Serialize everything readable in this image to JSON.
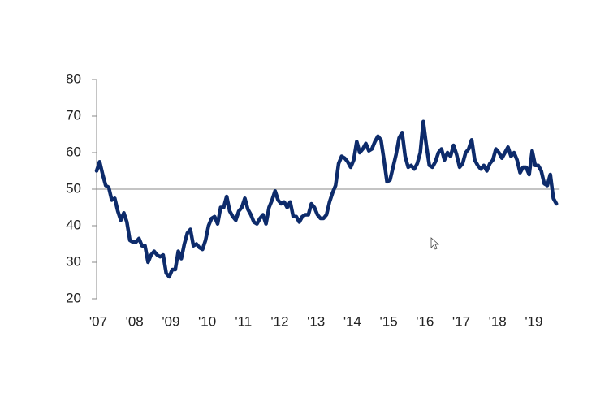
{
  "chart_data": {
    "type": "line",
    "color": "#0d2b6b",
    "categories": [
      "'07",
      null,
      null,
      null,
      null,
      null,
      null,
      null,
      null,
      null,
      null,
      null,
      "'08",
      null,
      null,
      null,
      null,
      null,
      null,
      null,
      null,
      null,
      null,
      null,
      "'09",
      null,
      null,
      null,
      null,
      null,
      null,
      null,
      null,
      null,
      null,
      null,
      "'10",
      null,
      null,
      null,
      null,
      null,
      null,
      null,
      null,
      null,
      null,
      null,
      "'11",
      null,
      null,
      null,
      null,
      null,
      null,
      null,
      null,
      null,
      null,
      null,
      "'12",
      null,
      null,
      null,
      null,
      null,
      null,
      null,
      null,
      null,
      null,
      null,
      "'13",
      null,
      null,
      null,
      null,
      null,
      null,
      null,
      null,
      null,
      null,
      null,
      "'14",
      null,
      null,
      null,
      null,
      null,
      null,
      null,
      null,
      null,
      null,
      null,
      "'15",
      null,
      null,
      null,
      null,
      null,
      null,
      null,
      null,
      null,
      null,
      null,
      "'16",
      null,
      null,
      null,
      null,
      null,
      null,
      null,
      null,
      null,
      null,
      null,
      "'17",
      null,
      null,
      null,
      null,
      null,
      null,
      null,
      null,
      null,
      null,
      null,
      "'18",
      null,
      null,
      null,
      null,
      null,
      null,
      null,
      null,
      null,
      null,
      null,
      "'19",
      null,
      null,
      null,
      null,
      null,
      null,
      null,
      null
    ],
    "values": [
      55,
      57.5,
      54,
      51,
      50.5,
      47,
      47.5,
      44,
      41.5,
      43.5,
      41,
      36,
      35.5,
      35.5,
      36.5,
      34.5,
      34.5,
      30,
      32,
      33,
      32,
      31.5,
      32,
      27,
      26,
      28,
      28,
      33,
      31,
      35,
      38,
      39,
      34.5,
      35,
      34,
      33.5,
      36,
      40,
      42,
      42.5,
      40.5,
      45,
      45,
      48,
      44,
      42.5,
      41.5,
      44,
      45,
      47.5,
      44.5,
      43,
      41,
      40.5,
      42,
      43,
      40.5,
      45,
      47,
      49.5,
      47,
      46,
      46.5,
      45,
      46.5,
      42.5,
      42.5,
      41,
      42.5,
      43,
      43,
      46,
      45,
      43,
      42,
      42,
      43,
      46.5,
      49,
      51,
      57,
      59,
      58.5,
      57.5,
      56,
      58,
      63,
      60,
      61,
      62.5,
      60.5,
      61,
      63,
      64.5,
      63.5,
      58,
      52,
      52.5,
      56,
      59.5,
      64,
      65.5,
      59,
      56,
      56.5,
      55.5,
      57,
      60,
      68.5,
      62,
      56.5,
      56,
      57.5,
      60,
      61,
      58,
      60,
      59,
      62,
      59.5,
      56,
      57,
      60,
      61,
      63.5,
      58,
      56.5,
      55.5,
      56.5,
      55,
      57,
      58,
      61,
      60,
      58.5,
      60,
      61.5,
      59,
      60,
      58,
      54.5,
      56,
      56,
      54,
      60.5,
      56.5,
      56.5,
      55,
      51.5,
      51,
      54,
      47.5,
      46
    ],
    "ylim": [
      20,
      80
    ],
    "yticks": [
      20,
      30,
      40,
      50,
      60,
      70,
      80
    ],
    "reference_line": 50
  }
}
